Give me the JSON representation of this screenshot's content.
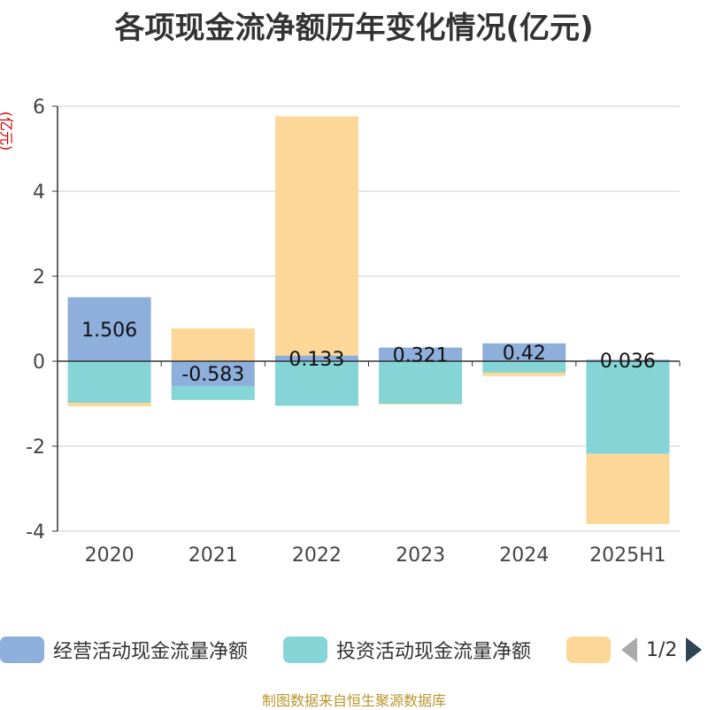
{
  "title": "各项现金流净额历年变化情况(亿元)",
  "source": "制图数据来自恒生聚源数据库",
  "chart_data": {
    "type": "bar",
    "stacked": true,
    "title": "各项现金流净额历年变化情况(亿元)",
    "ylabel": "(亿元)",
    "categories": [
      "2020",
      "2021",
      "2022",
      "2023",
      "2024",
      "2025H1"
    ],
    "ylim": [
      -4,
      6
    ],
    "yticks": [
      -4,
      -2,
      0,
      2,
      4,
      6
    ],
    "grid": true,
    "legend_position": "bottom",
    "series": [
      {
        "name": "经营活动现金流量净额",
        "color": "#8eaedb",
        "values": [
          1.506,
          -0.583,
          0.133,
          0.321,
          0.42,
          0.036
        ],
        "labels": [
          "1.506",
          "-0.583",
          "0.133",
          "0.321",
          "0.42",
          "0.036"
        ]
      },
      {
        "name": "投资活动现金流量净额",
        "color": "#86d5d6",
        "values": [
          -0.98,
          -0.33,
          -1.05,
          -1.0,
          -0.27,
          -2.18
        ],
        "labels": []
      },
      {
        "name": "",
        "color": "#fdd797",
        "values": [
          -0.08,
          0.77,
          5.63,
          -0.02,
          -0.08,
          -1.65
        ],
        "labels": []
      }
    ]
  },
  "legend": {
    "items": [
      {
        "label": "经营活动现金流量净额",
        "color": "#8eaedb"
      },
      {
        "label": "投资活动现金流量净额",
        "color": "#86d5d6"
      },
      {
        "label": "",
        "color": "#fdd797"
      }
    ],
    "page": "1/2"
  }
}
